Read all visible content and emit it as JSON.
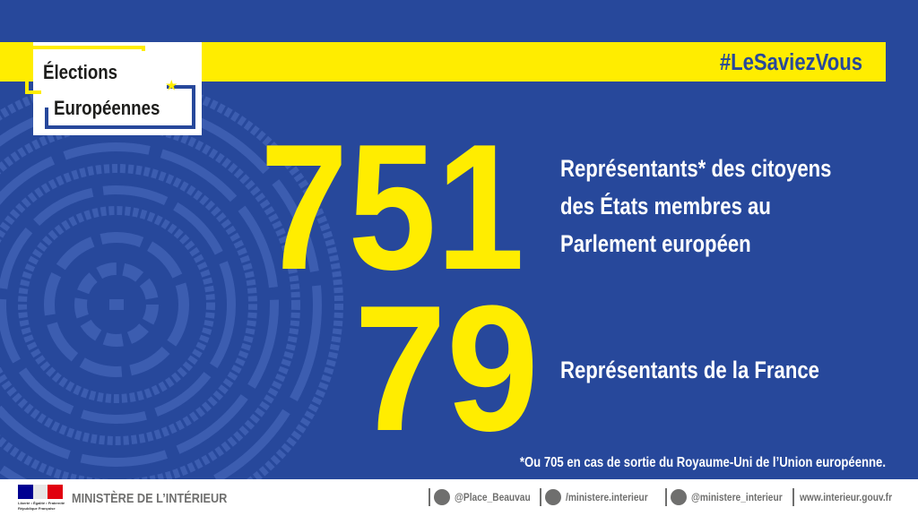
{
  "logo": {
    "line1": "Élections",
    "line2": "Européennes"
  },
  "hashtag": "#LeSaviezVous",
  "facts": [
    {
      "number": "751",
      "description": [
        "Représentants* des citoyens",
        "des États membres au",
        "Parlement européen"
      ]
    },
    {
      "number": "79",
      "description": [
        "Représentants de la France"
      ]
    }
  ],
  "footnote": "*Ou 705 en cas de sortie du Royaume-Uni de l’Union européenne.",
  "footer": {
    "ministry": "MINISTÈRE DE L’INTÉRIEUR",
    "marianne": [
      "Liberté • Égalité • Fraternité",
      "République Française"
    ],
    "twitter": "@Place_Beauvau",
    "facebook": "/ministere.interieur",
    "instagram": "@ministere_interieur",
    "website": "www.interieur.gouv.fr"
  }
}
